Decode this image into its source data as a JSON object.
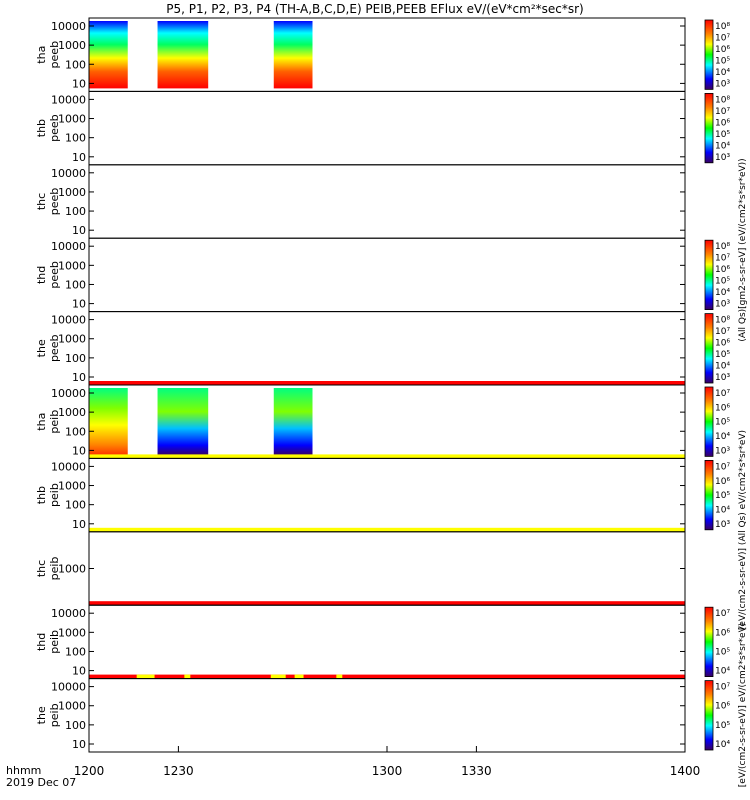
{
  "chart_data": {
    "type": "heatmap",
    "title": "P5, P1, P2, P3, P4 (TH-A,B,C,D,E) PEIB,PEEB EFlux eV/(eV*cm²*sec*sr)",
    "time_labels": {
      "row1": "hhmm",
      "row2": "2019 Dec 07"
    },
    "x_range": [
      1200,
      1400
    ],
    "x_ticks": [
      "1200",
      "1230",
      "1300",
      "1330",
      "1400"
    ],
    "x_tick_values": [
      1200,
      1230,
      1300,
      1330,
      1400
    ],
    "panels": [
      {
        "probe": "tha",
        "product": "peeb",
        "yticks": [
          "10000",
          "1000",
          "100",
          "10"
        ],
        "colorbar": true,
        "cb_ticks": [
          "10⁸",
          "10⁷",
          "10⁶",
          "10⁵",
          "10⁴",
          "10³"
        ],
        "data_blocks": [
          [
            1200,
            1213
          ],
          [
            1223,
            1240
          ],
          [
            1262,
            1275
          ]
        ],
        "top_bar": "",
        "bottom_bar": ""
      },
      {
        "probe": "thb",
        "product": "peeb",
        "yticks": [
          "10000",
          "1000",
          "100",
          "10"
        ],
        "colorbar": true,
        "cb_ticks": [
          "10⁸",
          "10⁷",
          "10⁶",
          "10⁵",
          "10⁴",
          "10³"
        ],
        "data_blocks": [],
        "top_bar": "",
        "bottom_bar": ""
      },
      {
        "probe": "thc",
        "product": "peeb",
        "yticks": [
          "10000",
          "1000",
          "100",
          "10"
        ],
        "colorbar": false,
        "cb_ticks": [],
        "data_blocks": [],
        "top_bar": "",
        "bottom_bar": ""
      },
      {
        "probe": "thd",
        "product": "peeb",
        "yticks": [
          "10000",
          "1000",
          "100",
          "10"
        ],
        "colorbar": true,
        "cb_ticks": [
          "10⁸",
          "10⁷",
          "10⁶",
          "10⁵",
          "10⁴",
          "10³"
        ],
        "data_blocks": [],
        "top_bar": "",
        "bottom_bar": ""
      },
      {
        "probe": "the",
        "product": "peeb",
        "yticks": [
          "10000",
          "1000",
          "100",
          "10"
        ],
        "colorbar": true,
        "cb_ticks": [
          "10⁸",
          "10⁷",
          "10⁶",
          "10⁵",
          "10⁴",
          "10³"
        ],
        "data_blocks": [],
        "top_bar": "",
        "bottom_bar": "red"
      },
      {
        "probe": "tha",
        "product": "peib",
        "yticks": [
          "10000",
          "1000",
          "100",
          "10"
        ],
        "colorbar": true,
        "cb_ticks": [
          "10⁷",
          "10⁶",
          "10⁵",
          "10⁴",
          "10³"
        ],
        "data_blocks": [
          [
            1200,
            1213
          ],
          [
            1223,
            1240
          ],
          [
            1262,
            1275
          ]
        ],
        "top_bar": "",
        "bottom_bar": "yellow"
      },
      {
        "probe": "thb",
        "product": "peib",
        "yticks": [
          "10000",
          "1000",
          "100",
          "10"
        ],
        "colorbar": true,
        "cb_ticks": [
          "10⁷",
          "10⁶",
          "10⁵",
          "10⁴",
          "10³"
        ],
        "data_blocks": [],
        "top_bar": "",
        "bottom_bar": "yellow"
      },
      {
        "probe": "thc",
        "product": "peib",
        "yticks": [
          "1000"
        ],
        "colorbar": false,
        "cb_ticks": [],
        "data_blocks": [],
        "top_bar": "",
        "bottom_bar": "red"
      },
      {
        "probe": "thd",
        "product": "peib",
        "yticks": [
          "10000",
          "1000",
          "100",
          "10"
        ],
        "colorbar": true,
        "cb_ticks": [
          "10⁷",
          "10⁶",
          "10⁵",
          "10⁴"
        ],
        "data_blocks": [],
        "top_bar": "",
        "bottom_bar": "mixed"
      },
      {
        "probe": "the",
        "product": "peib",
        "yticks": [
          "10000",
          "1000",
          "100",
          "10"
        ],
        "colorbar": true,
        "cb_ticks": [
          "10⁷",
          "10⁶",
          "10⁵",
          "10⁴"
        ],
        "data_blocks": [],
        "top_bar": "",
        "bottom_bar": ""
      }
    ],
    "colorbar_labels": {
      "top": "(All Qs)[gm2-s-sr-eV] (eV/(cm2*s*sr*eV))",
      "middle": "[eV/(cm2-s-sr-eV)] (All Qs) eV/(cm2*s*sr*eV)",
      "bottom": "[eV/(cm2-s-sr-eV)] eV/(cm2*s*sr*eV)"
    }
  },
  "colors": {
    "spectrum": [
      "#ff0000",
      "#ff8000",
      "#ffff00",
      "#80ff00",
      "#00ff80",
      "#00ffff",
      "#0080ff",
      "#0000ff",
      "#4000a0",
      "#000000"
    ]
  }
}
